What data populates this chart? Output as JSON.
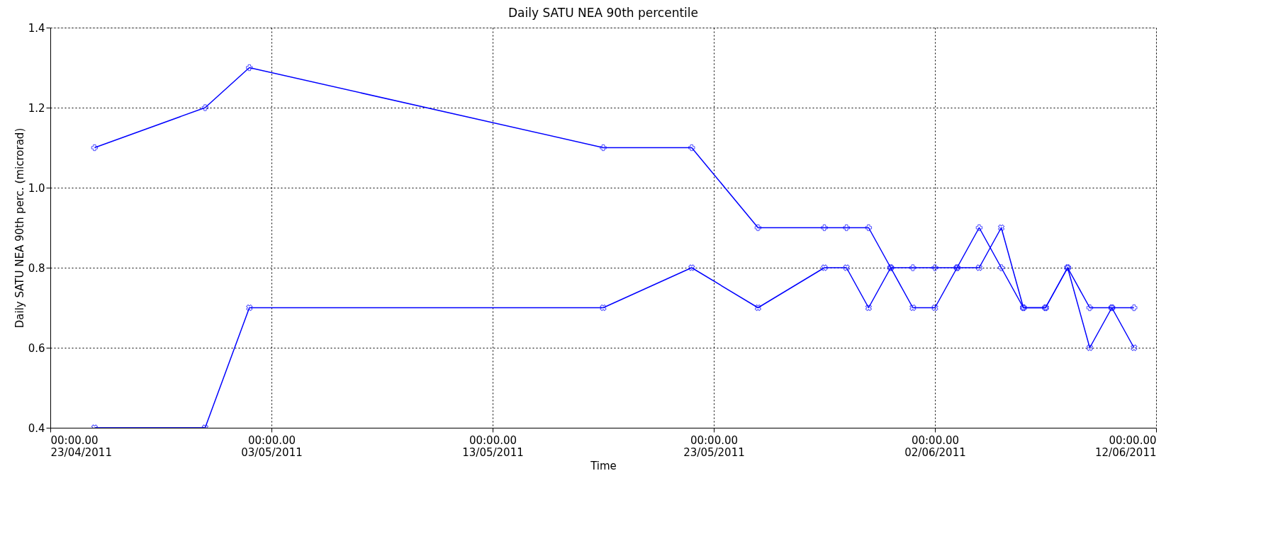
{
  "chart_data": {
    "type": "line",
    "title": "Daily SATU NEA 90th percentile",
    "xlabel": "Time",
    "ylabel": "Daily SATU NEA 90th perc. (microrad)",
    "x": [
      "2011-04-25",
      "2011-04-30",
      "2011-05-02",
      "2011-05-18",
      "2011-05-22",
      "2011-05-25",
      "2011-05-28",
      "2011-05-29",
      "2011-05-30",
      "2011-05-31",
      "2011-06-01",
      "2011-06-02",
      "2011-06-03",
      "2011-06-04",
      "2011-06-05",
      "2011-06-06",
      "2011-06-07",
      "2011-06-08",
      "2011-06-09",
      "2011-06-10",
      "2011-06-11"
    ],
    "series": [
      {
        "color": "#0000ff",
        "marker": "cross",
        "values": [
          1.1,
          1.2,
          1.3,
          1.1,
          1.1,
          0.9,
          0.9,
          0.9,
          0.9,
          0.8,
          0.8,
          0.8,
          0.8,
          0.9,
          0.8,
          0.7,
          0.7,
          0.8,
          0.7,
          0.7,
          0.7
        ]
      },
      {
        "color": "#0000ff",
        "marker": "x",
        "values": [
          0.4,
          0.4,
          0.7,
          0.7,
          0.8,
          0.7,
          0.8,
          0.8,
          0.7,
          0.8,
          0.7,
          0.7,
          0.8,
          0.8,
          0.9,
          0.7,
          0.7,
          0.8,
          0.6,
          0.7,
          0.6
        ]
      }
    ],
    "xlim": [
      "2011-04-23",
      "2011-06-12"
    ],
    "xticks": [
      {
        "value": "2011-04-23",
        "label": "00:00.00\n23/04/2011"
      },
      {
        "value": "2011-05-03",
        "label": "00:00.00\n03/05/2011"
      },
      {
        "value": "2011-05-13",
        "label": "00:00.00\n13/05/2011"
      },
      {
        "value": "2011-05-23",
        "label": "00:00.00\n23/05/2011"
      },
      {
        "value": "2011-06-02",
        "label": "00:00.00\n02/06/2011"
      },
      {
        "value": "2011-06-12",
        "label": "00:00.00\n12/06/2011"
      }
    ],
    "ylim": [
      0.4,
      1.4
    ],
    "yticks": [
      0.4,
      0.6,
      0.8,
      {
        "value": 1.0,
        "label": "1.0"
      },
      1.2,
      1.4
    ],
    "grid": true,
    "line_style": "solid"
  }
}
